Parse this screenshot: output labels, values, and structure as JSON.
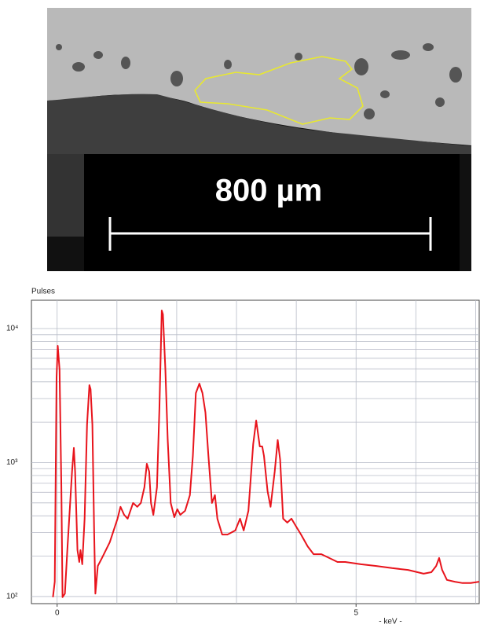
{
  "image": {
    "scale_label": "800 µm"
  },
  "chart_data": {
    "type": "line",
    "y_label": "Pulses",
    "x_label": "- keV -",
    "log_y": true,
    "color": "#e8141c",
    "xlim": [
      -0.43,
      7.06
    ],
    "ylim": [
      88.5,
      16260
    ],
    "xticks": [
      0,
      5
    ],
    "xgrid": [
      0,
      1,
      2,
      3,
      4,
      5,
      6,
      7
    ],
    "yticks": [
      {
        "value": 100,
        "label": "10²"
      },
      {
        "value": 1000,
        "label": "10³"
      },
      {
        "value": 10000,
        "label": "10⁴"
      }
    ],
    "ygrid": [
      100,
      200,
      300,
      400,
      500,
      600,
      700,
      800,
      900,
      1000,
      2000,
      3000,
      4000,
      5000,
      6000,
      7000,
      8000,
      9000,
      10000
    ],
    "grid": true,
    "x": [
      -0.07,
      -0.04,
      -0.01,
      0.01,
      0.04,
      0.07,
      0.09,
      0.13,
      0.17,
      0.21,
      0.25,
      0.28,
      0.3,
      0.34,
      0.37,
      0.39,
      0.42,
      0.46,
      0.5,
      0.54,
      0.56,
      0.59,
      0.62,
      0.64,
      0.68,
      0.75,
      0.88,
      1.01,
      1.06,
      1.12,
      1.18,
      1.27,
      1.34,
      1.4,
      1.46,
      1.5,
      1.54,
      1.57,
      1.61,
      1.67,
      1.71,
      1.75,
      1.77,
      1.81,
      1.85,
      1.9,
      1.96,
      2.01,
      2.06,
      2.14,
      2.22,
      2.27,
      2.32,
      2.38,
      2.43,
      2.48,
      2.53,
      2.59,
      2.64,
      2.68,
      2.76,
      2.85,
      2.98,
      3.06,
      3.12,
      3.2,
      3.28,
      3.33,
      3.39,
      3.43,
      3.46,
      3.52,
      3.57,
      3.64,
      3.69,
      3.73,
      3.78,
      3.85,
      3.92,
      4.0,
      4.08,
      4.19,
      4.29,
      4.42,
      4.55,
      4.69,
      4.82,
      5.08,
      5.34,
      5.6,
      5.87,
      6.13,
      6.26,
      6.34,
      6.39,
      6.44,
      6.52,
      6.65,
      6.78,
      6.92,
      7.06
    ],
    "values": [
      99,
      129,
      4330,
      7430,
      4950,
      653,
      99,
      105,
      222,
      436,
      857,
      1285,
      857,
      222,
      181,
      222,
      174,
      381,
      1920,
      3780,
      3530,
      1920,
      290,
      105,
      169,
      194,
      254,
      381,
      467,
      407,
      381,
      499,
      467,
      499,
      653,
      980,
      857,
      499,
      407,
      653,
      2520,
      13650,
      12760,
      4950,
      1470,
      499,
      391,
      448,
      407,
      436,
      571,
      1122,
      3300,
      3880,
      3300,
      2360,
      1122,
      499,
      571,
      381,
      290,
      290,
      311,
      381,
      311,
      436,
      1373,
      2060,
      1318,
      1318,
      1122,
      611,
      467,
      857,
      1470,
      1050,
      381,
      356,
      381,
      332,
      290,
      237,
      207,
      207,
      194,
      181,
      181,
      174,
      169,
      163,
      158,
      148,
      152,
      169,
      194,
      158,
      133,
      129,
      126,
      126,
      129
    ]
  }
}
